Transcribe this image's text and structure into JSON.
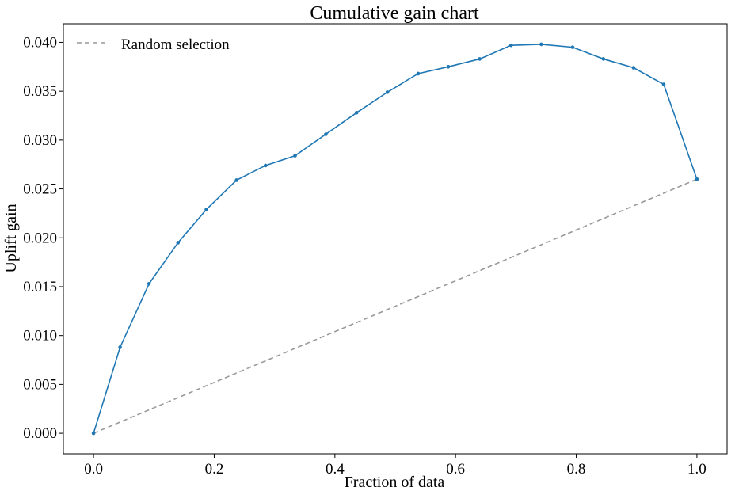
{
  "chart_data": {
    "type": "line",
    "title": "Cumulative gain chart",
    "xlabel": "Fraction of data",
    "ylabel": "Uplift gain",
    "xlim": [
      -0.05,
      1.05
    ],
    "ylim": [
      -0.0021,
      0.0419
    ],
    "x_ticks": [
      0.0,
      0.2,
      0.4,
      0.6,
      0.8,
      1.0
    ],
    "x_tick_labels": [
      "0.0",
      "0.2",
      "0.4",
      "0.6",
      "0.8",
      "1.0"
    ],
    "y_ticks": [
      0.0,
      0.005,
      0.01,
      0.015,
      0.02,
      0.025,
      0.03,
      0.035,
      0.04
    ],
    "y_tick_labels": [
      "0.000",
      "0.005",
      "0.010",
      "0.015",
      "0.020",
      "0.025",
      "0.030",
      "0.035",
      "0.040"
    ],
    "grid": false,
    "legend_position": "top-left",
    "series": [
      {
        "name": "",
        "color": "#1f77b4",
        "style": "solid-with-markers",
        "x": [
          0.0,
          0.044,
          0.092,
          0.14,
          0.187,
          0.237,
          0.285,
          0.334,
          0.385,
          0.436,
          0.487,
          0.538,
          0.588,
          0.64,
          0.692,
          0.742,
          0.794,
          0.845,
          0.895,
          0.945,
          1.0
        ],
        "y": [
          0.0,
          0.0088,
          0.0153,
          0.0195,
          0.0229,
          0.0259,
          0.0274,
          0.0284,
          0.0306,
          0.0328,
          0.0349,
          0.0368,
          0.0375,
          0.0383,
          0.0397,
          0.0398,
          0.0395,
          0.0383,
          0.0374,
          0.0357,
          0.026
        ]
      },
      {
        "name": "Random selection",
        "color": "#999999",
        "style": "dashed",
        "x": [
          0.0,
          1.0
        ],
        "y": [
          0.0,
          0.026
        ]
      }
    ]
  }
}
